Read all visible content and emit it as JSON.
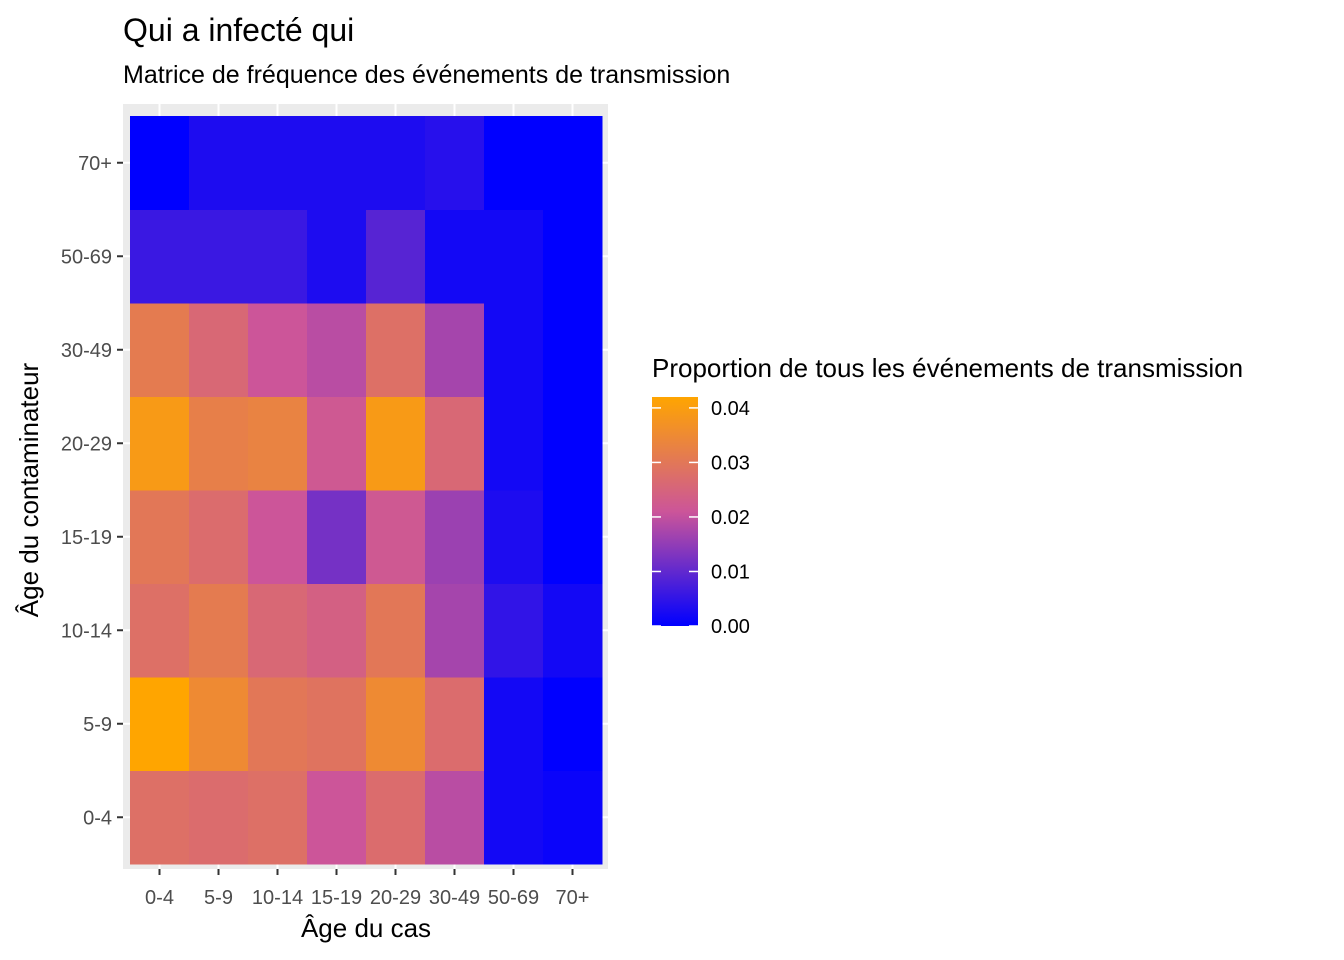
{
  "chart_data": {
    "type": "heatmap",
    "title": "Qui a infecté qui",
    "subtitle": "Matrice de fréquence des événements de transmission",
    "xlabel": "Âge du cas",
    "ylabel": "Âge du contaminateur",
    "x_categories": [
      "0-4",
      "5-9",
      "10-14",
      "15-19",
      "20-29",
      "30-49",
      "50-69",
      "70+"
    ],
    "y_categories": [
      "0-4",
      "5-9",
      "10-14",
      "15-19",
      "20-29",
      "30-49",
      "50-69",
      "70+"
    ],
    "values": [
      [
        0.028,
        0.027,
        0.028,
        0.021,
        0.027,
        0.019,
        0.002,
        0.001
      ],
      [
        0.042,
        0.035,
        0.03,
        0.029,
        0.035,
        0.027,
        0.002,
        0.0
      ],
      [
        0.028,
        0.031,
        0.026,
        0.024,
        0.03,
        0.017,
        0.005,
        0.002
      ],
      [
        0.03,
        0.027,
        0.021,
        0.012,
        0.022,
        0.016,
        0.003,
        0.0
      ],
      [
        0.039,
        0.032,
        0.033,
        0.022,
        0.039,
        0.026,
        0.002,
        0.0
      ],
      [
        0.031,
        0.026,
        0.021,
        0.019,
        0.028,
        0.017,
        0.002,
        0.0
      ],
      [
        0.006,
        0.006,
        0.006,
        0.003,
        0.009,
        0.002,
        0.002,
        0.0
      ],
      [
        0.0,
        0.003,
        0.003,
        0.003,
        0.003,
        0.004,
        0.0,
        0.0
      ]
    ],
    "value_range": [
      0,
      0.042
    ],
    "color_low": "#0000ff",
    "color_mid": "#cc5599",
    "color_high": "#ffa500",
    "grid": true,
    "legend": {
      "title": "Proportion de tous les événements de transmission",
      "position": "right",
      "breaks": [
        0.0,
        0.01,
        0.02,
        0.03,
        0.04
      ],
      "break_labels": [
        "0.00",
        "0.01",
        "0.02",
        "0.03",
        "0.04"
      ]
    }
  }
}
